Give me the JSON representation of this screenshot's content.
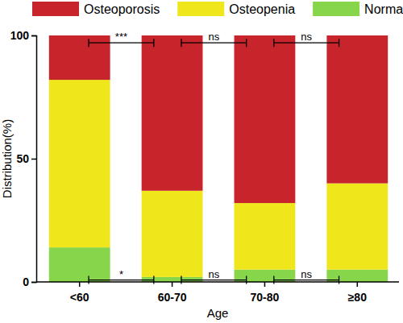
{
  "chart_data": {
    "type": "bar",
    "stacked": true,
    "x_label": "Age",
    "y_label": "Distribution(%)",
    "categories": [
      "<60",
      "60-70",
      "70-80",
      "≥80"
    ],
    "series": [
      {
        "name": "Normal",
        "color": "#86d54a",
        "values": [
          14,
          2,
          5,
          5
        ]
      },
      {
        "name": "Osteopenia",
        "color": "#efe61c",
        "values": [
          68,
          35,
          27,
          35
        ]
      },
      {
        "name": "Osteoporosis",
        "color": "#c8242b",
        "values": [
          18,
          63,
          68,
          60
        ]
      }
    ],
    "ylim": [
      0,
      100
    ],
    "yticks": [
      0,
      50,
      100
    ],
    "legend": "top",
    "annotations": [
      {
        "text": "***",
        "between": [
          "<60",
          "60-70"
        ],
        "y": 97
      },
      {
        "text": "ns",
        "between": [
          "60-70",
          "70-80"
        ],
        "y": 97
      },
      {
        "text": "ns",
        "between": [
          "70-80",
          "≥80"
        ],
        "y": 97
      },
      {
        "text": "*",
        "between": [
          "<60",
          "60-70"
        ],
        "y": 0.8
      },
      {
        "text": "ns",
        "between": [
          "60-70",
          "70-80"
        ],
        "y": 0.8
      },
      {
        "text": "ns",
        "between": [
          "70-80",
          "≥80"
        ],
        "y": 0.8
      }
    ]
  }
}
